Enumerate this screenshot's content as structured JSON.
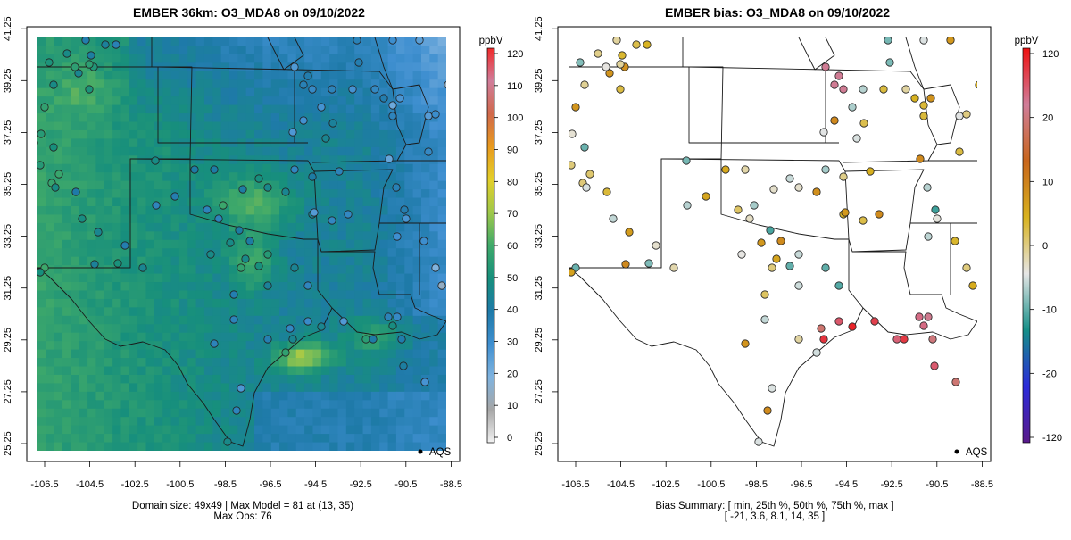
{
  "panels": [
    {
      "title": "EMBER 36km: O3_MDA8 on 09/10/2022",
      "legend_label": "AQS",
      "colorbar": {
        "unit": "ppbV",
        "ticks": [
          "0",
          "10",
          "20",
          "30",
          "40",
          "50",
          "60",
          "70",
          "80",
          "90",
          "100",
          "110",
          "120"
        ],
        "stops": [
          "#f2f2f2",
          "#a6a6a6",
          "#7fb3df",
          "#3f8fd0",
          "#1e7aa8",
          "#178f7c",
          "#3fa96a",
          "#9fc84a",
          "#e3cf2a",
          "#e89a1e",
          "#d0694c",
          "#d07d9a",
          "#ef2a2a"
        ]
      },
      "footer": [
        "Domain size: 49x49 | Max Model = 81 at (13, 35)",
        "Max Obs: 76"
      ]
    },
    {
      "title": "EMBER bias: O3_MDA8 on 09/10/2022",
      "legend_label": "AQS",
      "colorbar": {
        "unit": "ppbV",
        "ticks": [
          "-120",
          "-20",
          "-10",
          "0",
          "10",
          "20",
          "120"
        ],
        "stops": [
          "#5a1a8a",
          "#2b2bd9",
          "#158f88",
          "#e6e6e6",
          "#d8b21e",
          "#c8661c",
          "#d07d9a",
          "#ee1111"
        ]
      },
      "footer": [
        "Bias Summary: [ min, 25th %, 50th %, 75th %, max ]",
        "[ -21,   3.6,   8.1,   14,   35 ]"
      ]
    }
  ],
  "axes": {
    "x_ticks": [
      "-106.5",
      "-104.5",
      "-102.5",
      "-100.5",
      "-98.5",
      "-96.5",
      "-94.5",
      "-92.5",
      "-90.5",
      "-88.5"
    ],
    "y_ticks": [
      "25.25",
      "27.25",
      "29.25",
      "31.25",
      "33.25",
      "35.25",
      "37.25",
      "39.25",
      "41.25"
    ]
  },
  "colors": {
    "plot_bg": "#1f7fc0",
    "map_line": "#1a1a1a"
  }
}
